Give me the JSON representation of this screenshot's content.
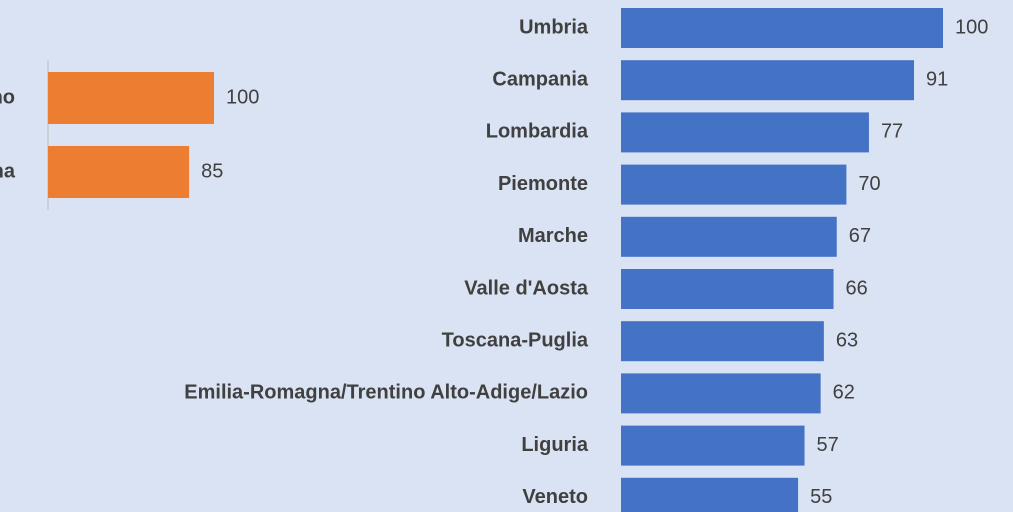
{
  "chart_data": [
    {
      "type": "bar",
      "orientation": "horizontal",
      "categories": [
        "no",
        "na"
      ],
      "values": [
        100,
        85
      ],
      "color": "#ed7d31",
      "xlim": [
        0,
        100
      ]
    },
    {
      "type": "bar",
      "orientation": "horizontal",
      "categories": [
        "Umbria",
        "Campania",
        "Lombardia",
        "Piemonte",
        "Marche",
        "Valle d'Aosta",
        "Toscana-Puglia",
        "Emilia-Romagna/Trentino Alto-Adige/Lazio",
        "Liguria",
        "Veneto"
      ],
      "values": [
        100,
        91,
        77,
        70,
        67,
        66,
        63,
        62,
        57,
        55
      ],
      "color": "#4472c4",
      "xlim": [
        0,
        100
      ]
    }
  ]
}
